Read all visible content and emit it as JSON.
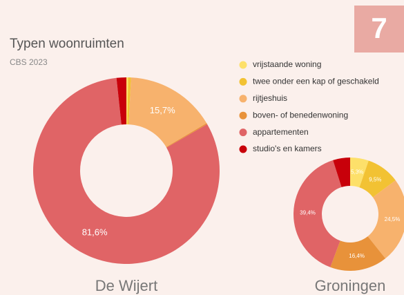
{
  "badge": "7",
  "chart_data": {
    "type": "donut",
    "title": "Typen woonruimten",
    "subtitle": "CBS 2023",
    "categories": [
      "vrijstaande woning",
      "twee onder een kap of geschakeld",
      "rijtjeshuis",
      "boven- of benedenwoning",
      "appartementen",
      "studio's en kamers"
    ],
    "colors": [
      "#fde06a",
      "#f2c233",
      "#f7b26d",
      "#e8923a",
      "#e06466",
      "#c8000a"
    ],
    "series": [
      {
        "name": "De Wijert",
        "values": [
          0.3,
          0.5,
          15.7,
          0.2,
          81.6,
          1.7
        ],
        "value_labels": [
          null,
          null,
          "15,7%",
          null,
          "81,6%",
          null
        ]
      },
      {
        "name": "Groningen",
        "values": [
          5.3,
          9.5,
          24.5,
          16.4,
          39.4,
          4.9
        ],
        "value_labels": [
          "5,3%",
          "9,5%",
          "24,5%",
          "16,4%",
          "39,4%",
          null
        ]
      }
    ]
  }
}
